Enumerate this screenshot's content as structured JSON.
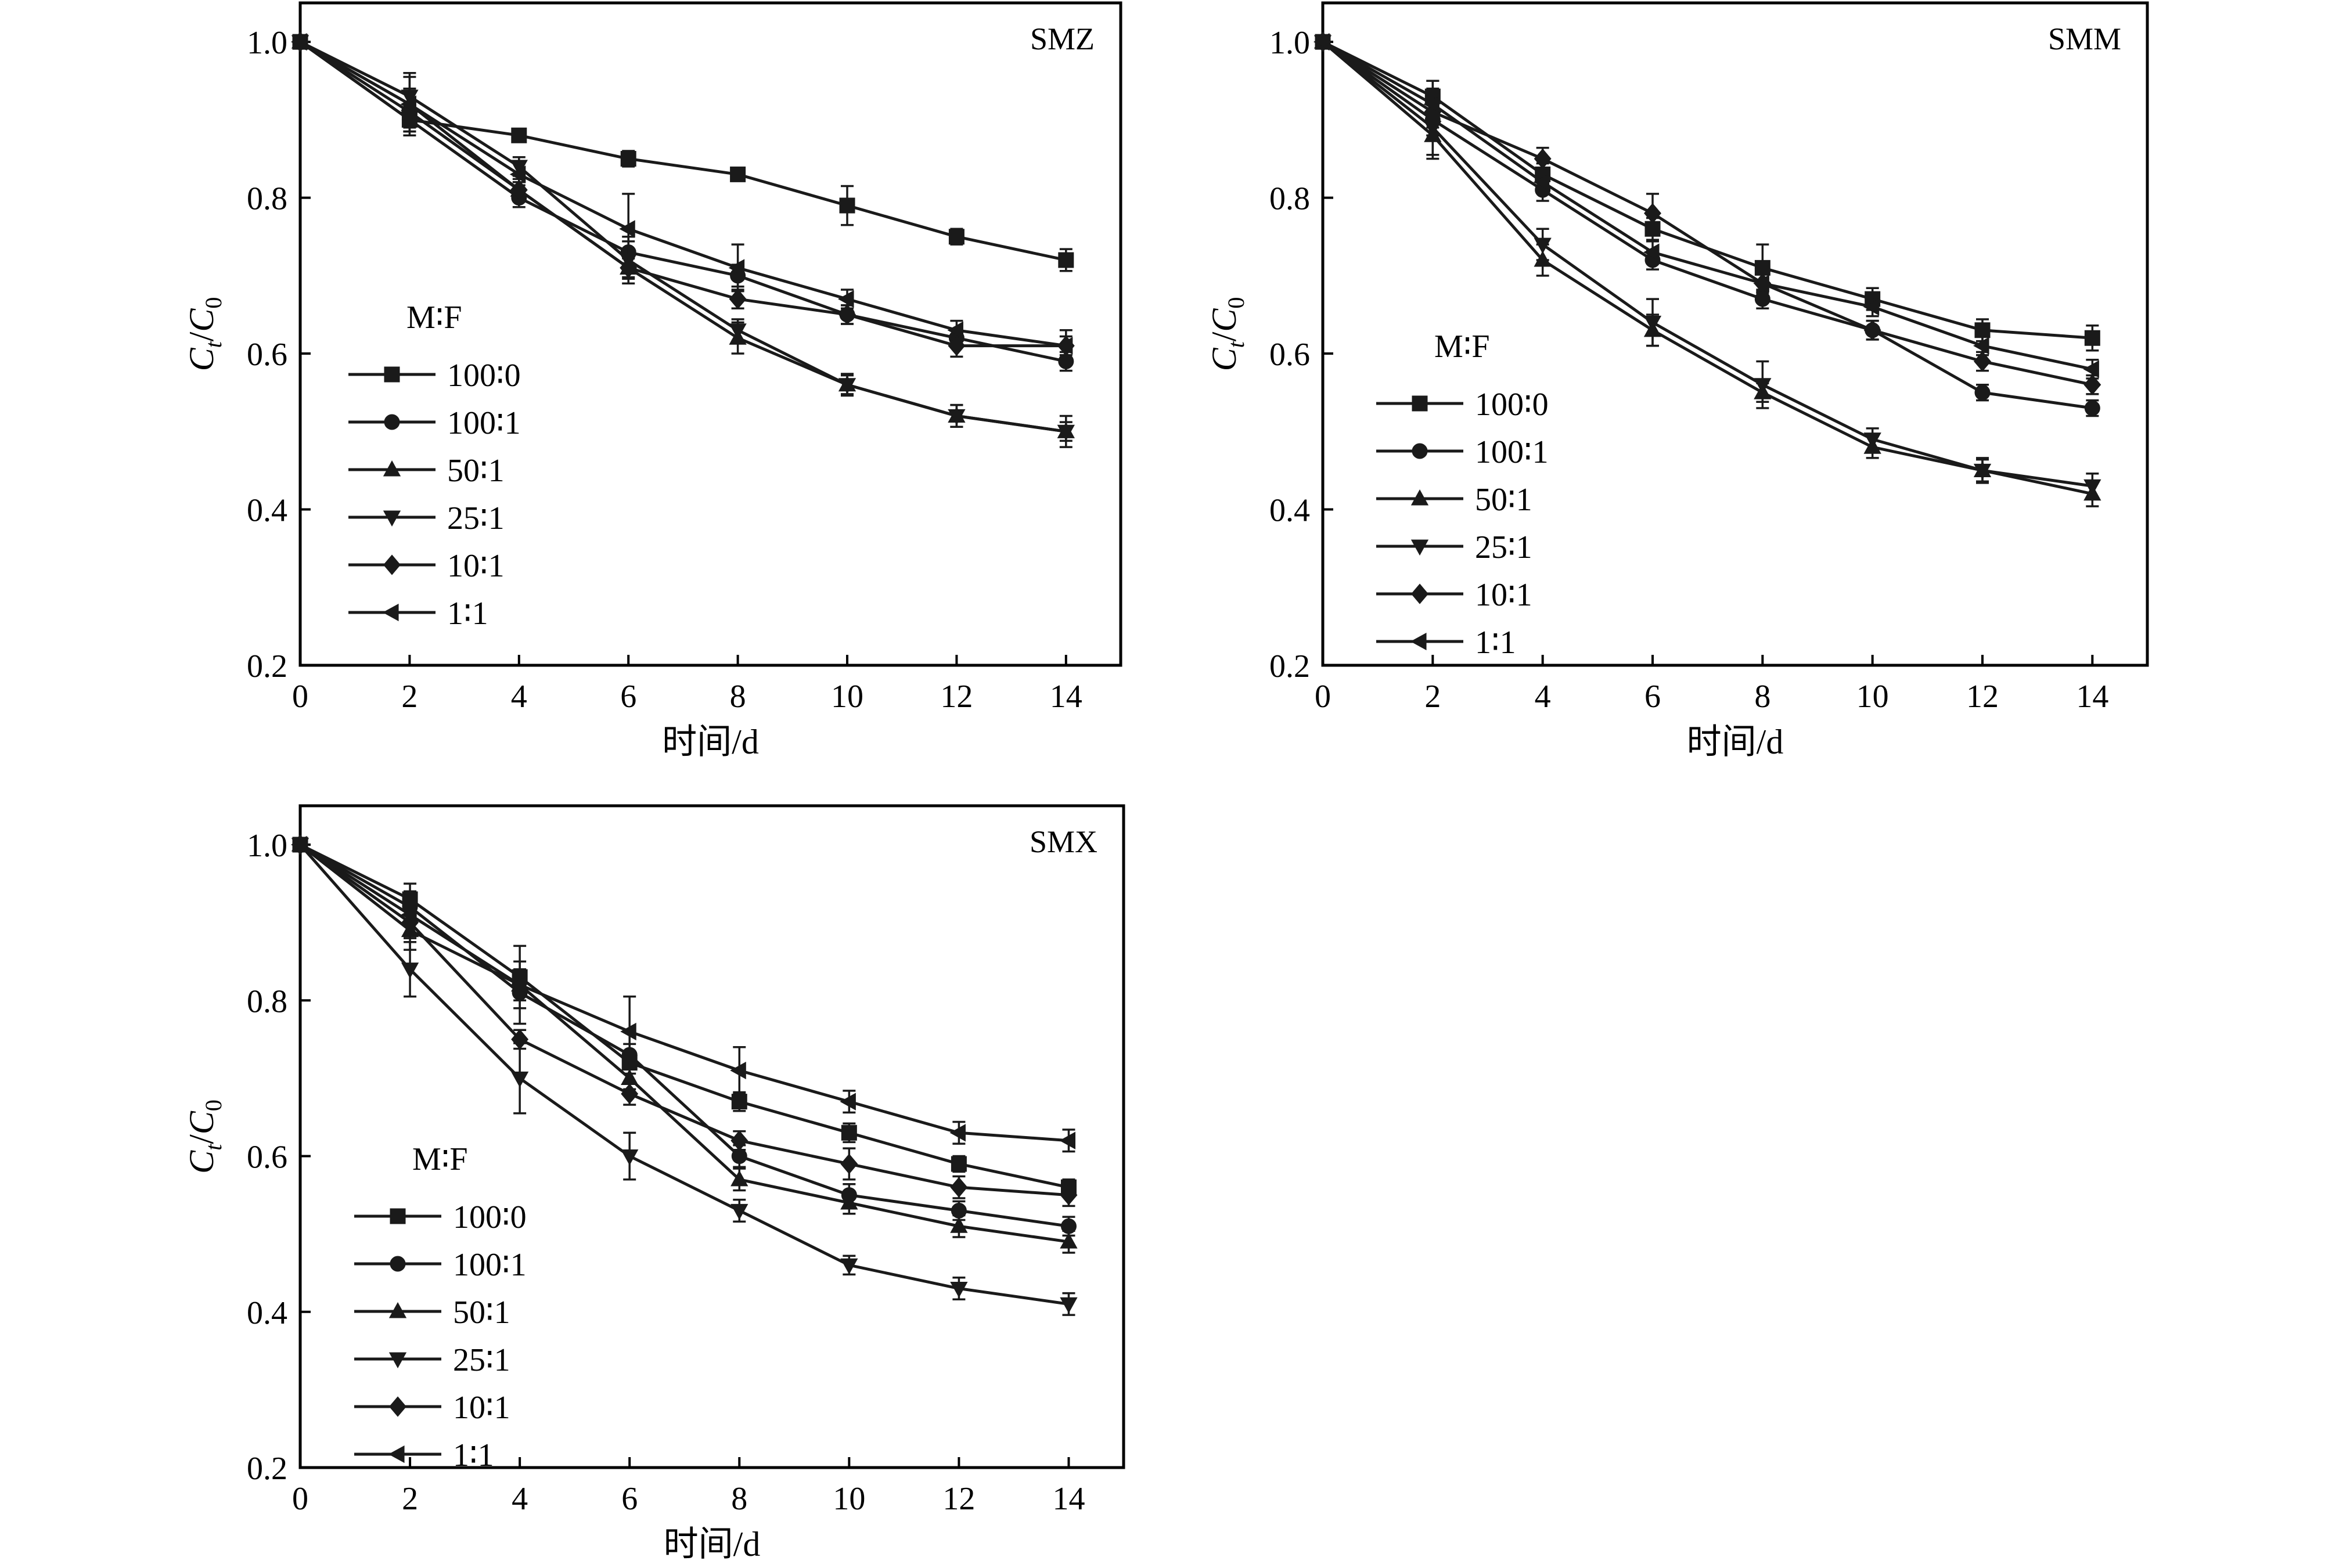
{
  "chart_data": [
    {
      "type": "line",
      "title": "SMZ",
      "xlabel": "时间/d",
      "ylabel": "C_t/C_0",
      "xlim": [
        0,
        15
      ],
      "ylim": [
        0.2,
        1.05
      ],
      "xticks": [
        "0",
        "2",
        "4",
        "6",
        "8",
        "10",
        "12",
        "14"
      ],
      "yticks": [
        "0.2",
        "0.4",
        "0.6",
        "0.8",
        "1.0"
      ],
      "legend_title": "M∶F",
      "legend_placement": "center-left",
      "x": [
        0,
        2,
        4,
        6,
        8,
        10,
        12,
        14
      ],
      "series": [
        {
          "name": "100∶0",
          "marker": "square",
          "values": [
            1.0,
            0.9,
            0.88,
            0.85,
            0.83,
            0.79,
            0.75,
            0.72
          ],
          "errors": [
            0,
            0.01,
            0.008,
            0.01,
            0.006,
            0.025,
            0.01,
            0.014
          ]
        },
        {
          "name": "100∶1",
          "marker": "circle",
          "values": [
            1.0,
            0.9,
            0.8,
            0.73,
            0.7,
            0.65,
            0.62,
            0.59
          ],
          "errors": [
            0,
            0.02,
            0.012,
            0.014,
            0.014,
            0.012,
            0.012,
            0.012
          ]
        },
        {
          "name": "50∶1",
          "marker": "triangle-up",
          "values": [
            1.0,
            0.92,
            0.81,
            0.71,
            0.62,
            0.56,
            0.52,
            0.5
          ],
          "errors": [
            0,
            0.02,
            0.01,
            0.014,
            0.02,
            0.014,
            0.014,
            0.02
          ]
        },
        {
          "name": "25∶1",
          "marker": "triangle-down",
          "values": [
            1.0,
            0.93,
            0.84,
            0.72,
            0.63,
            0.56,
            0.52,
            0.5
          ],
          "errors": [
            0,
            0.03,
            0.012,
            0.03,
            0.014,
            0.012,
            0.014,
            0.012
          ]
        },
        {
          "name": "10∶1",
          "marker": "diamond",
          "values": [
            1.0,
            0.91,
            0.81,
            0.71,
            0.67,
            0.65,
            0.61,
            0.61
          ],
          "errors": [
            0,
            0.025,
            0.014,
            0.012,
            0.012,
            0.012,
            0.014,
            0.012
          ]
        },
        {
          "name": "1∶1",
          "marker": "triangle-left",
          "values": [
            1.0,
            0.92,
            0.83,
            0.76,
            0.71,
            0.67,
            0.63,
            0.61
          ],
          "errors": [
            0,
            0.035,
            0.014,
            0.045,
            0.03,
            0.012,
            0.012,
            0.02
          ]
        }
      ]
    },
    {
      "type": "line",
      "title": "SMM",
      "xlabel": "时间/d",
      "ylabel": "C_t/C_0",
      "xlim": [
        0,
        15
      ],
      "ylim": [
        0.2,
        1.05
      ],
      "xticks": [
        "0",
        "2",
        "4",
        "6",
        "8",
        "10",
        "12",
        "14"
      ],
      "yticks": [
        "0.2",
        "0.4",
        "0.6",
        "0.8",
        "1.0"
      ],
      "legend_title": "M∶F",
      "legend_placement": "center-left",
      "x": [
        0,
        2,
        4,
        6,
        8,
        10,
        12,
        14
      ],
      "series": [
        {
          "name": "100∶0",
          "marker": "square",
          "values": [
            1.0,
            0.93,
            0.83,
            0.76,
            0.71,
            0.67,
            0.63,
            0.62
          ],
          "errors": [
            0,
            0.02,
            0.014,
            0.014,
            0.03,
            0.014,
            0.014,
            0.016
          ]
        },
        {
          "name": "100∶1",
          "marker": "circle",
          "values": [
            1.0,
            0.9,
            0.81,
            0.72,
            0.67,
            0.63,
            0.55,
            0.53
          ],
          "errors": [
            0,
            0.02,
            0.014,
            0.012,
            0.012,
            0.012,
            0.01,
            0.01
          ]
        },
        {
          "name": "50∶1",
          "marker": "triangle-up",
          "values": [
            1.0,
            0.88,
            0.72,
            0.63,
            0.55,
            0.48,
            0.45,
            0.42
          ],
          "errors": [
            0,
            0.03,
            0.02,
            0.02,
            0.012,
            0.014,
            0.014,
            0.016
          ]
        },
        {
          "name": "25∶1",
          "marker": "triangle-down",
          "values": [
            1.0,
            0.89,
            0.74,
            0.64,
            0.56,
            0.49,
            0.45,
            0.43
          ],
          "errors": [
            0,
            0.035,
            0.02,
            0.03,
            0.03,
            0.014,
            0.016,
            0.016
          ]
        },
        {
          "name": "10∶1",
          "marker": "diamond",
          "values": [
            1.0,
            0.91,
            0.85,
            0.78,
            0.69,
            0.63,
            0.59,
            0.56
          ],
          "errors": [
            0,
            0.03,
            0.014,
            0.025,
            0.012,
            0.012,
            0.012,
            0.012
          ]
        },
        {
          "name": "1∶1",
          "marker": "triangle-left",
          "values": [
            1.0,
            0.92,
            0.82,
            0.73,
            0.69,
            0.66,
            0.61,
            0.58
          ],
          "errors": [
            0,
            0.03,
            0.014,
            0.014,
            0.012,
            0.012,
            0.012,
            0.012
          ]
        }
      ]
    },
    {
      "type": "line",
      "title": "SMX",
      "xlabel": "时间/d",
      "ylabel": "C_t/C_0",
      "xlim": [
        0,
        15
      ],
      "ylim": [
        0.2,
        1.05
      ],
      "xticks": [
        "0",
        "2",
        "4",
        "6",
        "8",
        "10",
        "12",
        "14"
      ],
      "yticks": [
        "0.2",
        "0.4",
        "0.6",
        "0.8",
        "1.0"
      ],
      "legend_title": "M∶F",
      "legend_placement": "center-left",
      "x": [
        0,
        2,
        4,
        6,
        8,
        10,
        12,
        14
      ],
      "series": [
        {
          "name": "100∶0",
          "marker": "square",
          "values": [
            1.0,
            0.93,
            0.83,
            0.72,
            0.67,
            0.63,
            0.59,
            0.56
          ],
          "errors": [
            0,
            0.02,
            0.02,
            0.014,
            0.012,
            0.012,
            0.01,
            0.01
          ]
        },
        {
          "name": "100∶1",
          "marker": "circle",
          "values": [
            1.0,
            0.92,
            0.81,
            0.73,
            0.6,
            0.55,
            0.53,
            0.51
          ],
          "errors": [
            0,
            0.02,
            0.02,
            0.014,
            0.014,
            0.014,
            0.012,
            0.012
          ]
        },
        {
          "name": "50∶1",
          "marker": "triangle-up",
          "values": [
            1.0,
            0.89,
            0.82,
            0.7,
            0.57,
            0.54,
            0.51,
            0.49
          ],
          "errors": [
            0,
            0.025,
            0.02,
            0.014,
            0.014,
            0.014,
            0.014,
            0.014
          ]
        },
        {
          "name": "25∶1",
          "marker": "triangle-down",
          "values": [
            1.0,
            0.84,
            0.7,
            0.6,
            0.53,
            0.46,
            0.43,
            0.41
          ],
          "errors": [
            0,
            0.035,
            0.045,
            0.03,
            0.014,
            0.012,
            0.014,
            0.014
          ]
        },
        {
          "name": "10∶1",
          "marker": "diamond",
          "values": [
            1.0,
            0.9,
            0.75,
            0.68,
            0.62,
            0.59,
            0.56,
            0.55
          ],
          "errors": [
            0,
            0.02,
            0.012,
            0.014,
            0.012,
            0.02,
            0.014,
            0.014
          ]
        },
        {
          "name": "1∶1",
          "marker": "triangle-left",
          "values": [
            1.0,
            0.91,
            0.82,
            0.76,
            0.71,
            0.67,
            0.63,
            0.62
          ],
          "errors": [
            0,
            0.03,
            0.05,
            0.045,
            0.03,
            0.014,
            0.014,
            0.014
          ]
        }
      ]
    }
  ]
}
